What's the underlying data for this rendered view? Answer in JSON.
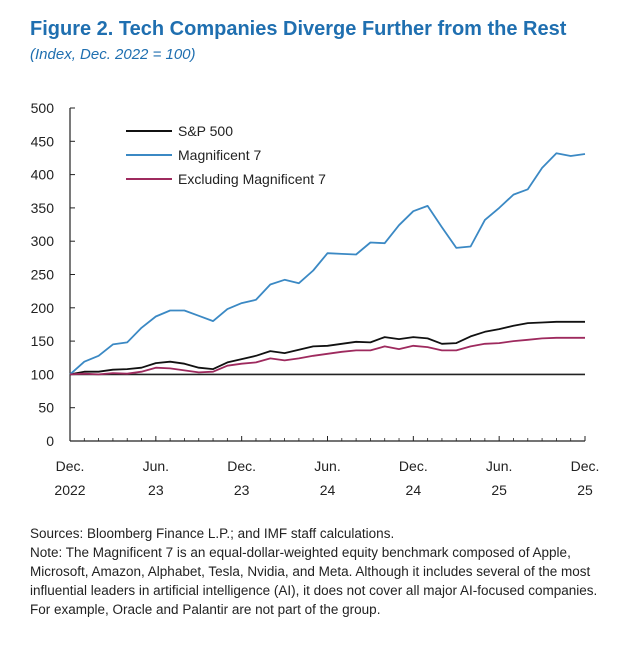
{
  "figure": {
    "title": "Figure 2. Tech Companies Diverge Further from the Rest",
    "subtitle": "(Index, Dec. 2022 = 100)"
  },
  "chart_data": {
    "type": "line",
    "title": "Figure 2. Tech Companies Diverge Further from the Rest",
    "ylabel": "Index, Dec. 2022 = 100",
    "ylim": [
      0,
      500
    ],
    "yticks": [
      0,
      50,
      100,
      150,
      200,
      250,
      300,
      350,
      400,
      450,
      500
    ],
    "xlim": [
      0,
      36
    ],
    "xticks": [
      {
        "x": 0,
        "line1": "Dec.",
        "line2": "2022"
      },
      {
        "x": 6,
        "line1": "Jun.",
        "line2": "23"
      },
      {
        "x": 12,
        "line1": "Dec.",
        "line2": "23"
      },
      {
        "x": 18,
        "line1": "Jun.",
        "line2": "24"
      },
      {
        "x": 24,
        "line1": "Dec.",
        "line2": "24"
      },
      {
        "x": 30,
        "line1": "Jun.",
        "line2": "25"
      },
      {
        "x": 36,
        "line1": "Dec.",
        "line2": "25"
      }
    ],
    "reference_line": 100,
    "x": [
      0,
      1,
      2,
      3,
      4,
      5,
      6,
      7,
      8,
      9,
      10,
      11,
      12,
      13,
      14,
      15,
      16,
      17,
      18,
      19,
      20,
      21,
      22,
      23,
      24,
      25,
      26,
      27,
      28,
      29,
      30,
      31,
      32,
      33,
      34,
      35,
      36
    ],
    "series": [
      {
        "name": "S&P 500",
        "color": "#111111",
        "values": [
          100,
          104,
          104,
          107,
          108,
          110,
          117,
          119,
          116,
          110,
          108,
          118,
          123,
          128,
          135,
          132,
          137,
          142,
          143,
          146,
          149,
          148,
          156,
          153,
          156,
          154,
          146,
          147,
          157,
          164,
          168,
          173,
          177,
          178,
          179,
          179,
          179
        ]
      },
      {
        "name": "Magnificent 7",
        "color": "#3b89c4",
        "values": [
          100,
          119,
          128,
          145,
          148,
          170,
          187,
          196,
          196,
          188,
          180,
          198,
          207,
          212,
          235,
          242,
          237,
          256,
          282,
          281,
          280,
          298,
          297,
          324,
          345,
          353,
          321,
          290,
          292,
          332,
          350,
          370,
          378,
          410,
          432,
          428,
          431
        ]
      },
      {
        "name": "Excluding Magnificent 7",
        "color": "#9e2a5e",
        "values": [
          100,
          101,
          100,
          102,
          101,
          104,
          110,
          109,
          106,
          103,
          104,
          113,
          116,
          118,
          124,
          121,
          124,
          128,
          131,
          134,
          136,
          136,
          142,
          138,
          143,
          141,
          136,
          136,
          142,
          146,
          147,
          150,
          152,
          154,
          155,
          155,
          155
        ]
      }
    ]
  },
  "notes": {
    "sources": "Sources: Bloomberg Finance L.P.; and IMF staff calculations.",
    "note": "Note: The Magnificent 7 is an equal-dollar-weighted equity benchmark composed of Apple, Microsoft, Amazon, Alphabet, Tesla, Nvidia, and Meta. Although it includes several of the most influential leaders in artificial intelligence (AI), it does not cover all major AI-focused companies. For example, Oracle and Palantir are not part of the group."
  }
}
